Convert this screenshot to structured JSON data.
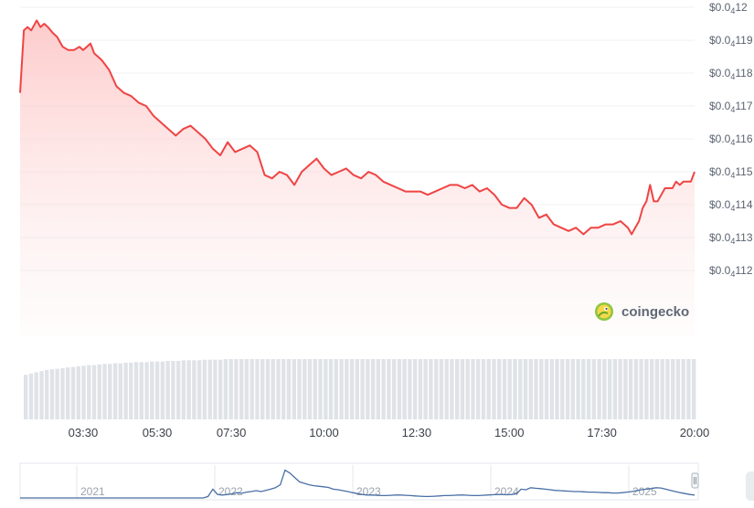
{
  "brand": {
    "name": "coingecko",
    "icon": "gecko-logo"
  },
  "colors": {
    "line": "#ef4444",
    "fillTop": "#fdc9c9",
    "grid": "#edf0f3",
    "volume": "#dfe3e8",
    "navigator": "#4a6fa5"
  },
  "chart_data": {
    "type": "area",
    "ylim": [
      0.0411,
      0.0412
    ],
    "y_tick_values": [
      0.0412,
      0.04119,
      0.04118,
      0.04117,
      0.04116,
      0.04115,
      0.04114,
      0.04113,
      0.04112
    ],
    "y_tick_labels": [
      {
        "main": "$0.0",
        "sub": "4",
        "tail": "12"
      },
      {
        "main": "$0.0",
        "sub": "4",
        "tail": "119"
      },
      {
        "main": "$0.0",
        "sub": "4",
        "tail": "118"
      },
      {
        "main": "$0.0",
        "sub": "4",
        "tail": "117"
      },
      {
        "main": "$0.0",
        "sub": "4",
        "tail": "116"
      },
      {
        "main": "$0.0",
        "sub": "4",
        "tail": "115"
      },
      {
        "main": "$0.0",
        "sub": "4",
        "tail": "114"
      },
      {
        "main": "$0.0",
        "sub": "4",
        "tail": "113"
      },
      {
        "main": "$0.0",
        "sub": "4",
        "tail": "112"
      }
    ],
    "x_range_hours": [
      1.8,
      20.0
    ],
    "x_ticks": [
      {
        "label": "03:30",
        "hour": 3.5
      },
      {
        "label": "05:30",
        "hour": 5.5
      },
      {
        "label": "07:30",
        "hour": 7.5
      },
      {
        "label": "10:00",
        "hour": 10.0
      },
      {
        "label": "12:30",
        "hour": 12.5
      },
      {
        "label": "15:00",
        "hour": 15.0
      },
      {
        "label": "17:30",
        "hour": 17.5
      },
      {
        "label": "20:00",
        "hour": 20.0
      }
    ],
    "series": [
      {
        "x": [
          1.8,
          1.9,
          2.0,
          2.1,
          2.25,
          2.35,
          2.45,
          2.55,
          2.7,
          2.8,
          2.95,
          3.1,
          3.25,
          3.4,
          3.5,
          3.6,
          3.7,
          3.8,
          4.0,
          4.2,
          4.4,
          4.6,
          4.8,
          5.0,
          5.2,
          5.4,
          5.6,
          5.8,
          6.0,
          6.2,
          6.4,
          6.6,
          6.8,
          7.0,
          7.2,
          7.4,
          7.6,
          7.8,
          8.0,
          8.2,
          8.4,
          8.6,
          8.8,
          9.0,
          9.2,
          9.4,
          9.6,
          9.8,
          10.0,
          10.2,
          10.4,
          10.6,
          10.8,
          11.0,
          11.2,
          11.4,
          11.6,
          11.8,
          12.0,
          12.2,
          12.4,
          12.6,
          12.8,
          13.0,
          13.2,
          13.4,
          13.6,
          13.8,
          14.0,
          14.2,
          14.4,
          14.6,
          14.8,
          15.0,
          15.2,
          15.4,
          15.6,
          15.8,
          16.0,
          16.2,
          16.4,
          16.6,
          16.8,
          17.0,
          17.2,
          17.4,
          17.6,
          17.8,
          18.0,
          18.1,
          18.2,
          18.3,
          18.4,
          18.5,
          18.6,
          18.7,
          18.8,
          18.9,
          19.0,
          19.1,
          19.2,
          19.3,
          19.4,
          19.5,
          19.6,
          19.7,
          19.8,
          19.9,
          20.0
        ],
        "y": [
          0.041174,
          0.041193,
          0.041194,
          0.041193,
          0.041196,
          0.041194,
          0.041195,
          0.041194,
          0.041192,
          0.041191,
          0.041188,
          0.041187,
          0.041187,
          0.041188,
          0.041187,
          0.041188,
          0.041189,
          0.041186,
          0.041184,
          0.041181,
          0.041176,
          0.041174,
          0.041173,
          0.041171,
          0.04117,
          0.041167,
          0.041165,
          0.041163,
          0.041161,
          0.041163,
          0.041164,
          0.041162,
          0.04116,
          0.041157,
          0.041155,
          0.041159,
          0.041156,
          0.041157,
          0.041158,
          0.041156,
          0.041149,
          0.041148,
          0.04115,
          0.041149,
          0.041146,
          0.04115,
          0.041152,
          0.041154,
          0.041151,
          0.041149,
          0.04115,
          0.041151,
          0.041149,
          0.041148,
          0.04115,
          0.041149,
          0.041147,
          0.041146,
          0.041145,
          0.041144,
          0.041144,
          0.041144,
          0.041143,
          0.041144,
          0.041145,
          0.041146,
          0.041146,
          0.041145,
          0.041146,
          0.041144,
          0.041145,
          0.041143,
          0.04114,
          0.041139,
          0.041139,
          0.041142,
          0.04114,
          0.041136,
          0.041137,
          0.041134,
          0.041133,
          0.041132,
          0.041133,
          0.041131,
          0.041133,
          0.041133,
          0.041134,
          0.041134,
          0.041135,
          0.041134,
          0.041133,
          0.041131,
          0.041133,
          0.041135,
          0.041139,
          0.041141,
          0.041146,
          0.041141,
          0.041141,
          0.041143,
          0.041145,
          0.041145,
          0.041145,
          0.041147,
          0.041146,
          0.041147,
          0.041147,
          0.041147,
          0.04115
        ]
      }
    ],
    "volume": {
      "bar_count": 128,
      "relative_values": [
        0.74,
        0.76,
        0.78,
        0.8,
        0.82,
        0.83,
        0.84,
        0.85,
        0.86,
        0.87,
        0.88,
        0.89,
        0.9,
        0.9,
        0.91,
        0.92,
        0.92,
        0.93,
        0.93,
        0.94,
        0.94,
        0.95,
        0.95,
        0.95,
        0.96,
        0.96,
        0.96,
        0.97,
        0.97,
        0.97,
        0.98,
        0.98,
        0.98,
        0.98,
        0.99,
        0.99,
        0.99,
        0.99,
        1.0,
        1.0,
        1.0,
        1.0,
        1.0,
        1.0,
        1.0,
        1.0,
        1.0,
        1.0,
        1.0,
        1.0,
        1.0,
        1.0,
        1.0,
        1.0,
        1.0,
        1.0,
        1.0,
        1.0,
        1.0,
        1.0,
        1.0,
        1.0,
        1.0,
        1.0,
        1.0,
        1.0,
        1.0,
        1.0,
        1.0,
        1.0,
        1.0,
        1.0,
        1.0,
        1.0,
        1.0,
        1.0,
        1.0,
        1.0,
        1.0,
        1.0,
        1.0,
        1.0,
        1.0,
        1.0,
        1.0,
        1.0,
        1.0,
        1.0,
        1.0,
        1.0,
        1.0,
        1.0,
        1.0,
        1.0,
        1.0,
        1.0,
        1.0,
        1.0,
        1.0,
        1.0,
        1.0,
        1.0,
        1.0,
        1.0,
        1.0,
        1.0,
        1.0,
        1.0,
        1.0,
        1.0,
        1.0,
        1.0,
        1.0,
        1.0,
        1.0,
        1.0,
        1.0,
        1.0,
        1.0,
        1.0,
        1.0,
        1.0,
        1.0,
        1.0,
        1.0,
        1.0,
        1.0,
        1.0
      ]
    },
    "navigator": {
      "year_labels": [
        "2021",
        "2022",
        "2023",
        "2024",
        "2025"
      ],
      "relative_series": [
        0.0,
        0.0,
        0.0,
        0.0,
        0.0,
        0.0,
        0.0,
        0.0,
        0.0,
        0.0,
        0.0,
        0.0,
        0.0,
        0.0,
        0.0,
        0.0,
        0.0,
        0.0,
        0.0,
        0.0,
        0.0,
        0.0,
        0.0,
        0.0,
        0.0,
        0.0,
        0.0,
        0.0,
        0.0,
        0.0,
        0.0,
        0.0,
        0.0,
        0.0,
        0.0,
        0.0,
        0.0,
        0.0,
        0.0,
        0.05,
        0.3,
        0.12,
        0.1,
        0.12,
        0.14,
        0.18,
        0.16,
        0.2,
        0.22,
        0.25,
        0.22,
        0.26,
        0.3,
        0.35,
        0.45,
        0.95,
        0.85,
        0.7,
        0.55,
        0.5,
        0.45,
        0.42,
        0.4,
        0.38,
        0.36,
        0.3,
        0.28,
        0.25,
        0.22,
        0.18,
        0.15,
        0.12,
        0.1,
        0.1,
        0.09,
        0.08,
        0.08,
        0.09,
        0.1,
        0.1,
        0.09,
        0.08,
        0.07,
        0.06,
        0.05,
        0.05,
        0.06,
        0.07,
        0.08,
        0.08,
        0.09,
        0.1,
        0.1,
        0.09,
        0.08,
        0.08,
        0.09,
        0.1,
        0.11,
        0.12,
        0.12,
        0.11,
        0.12,
        0.14,
        0.3,
        0.28,
        0.35,
        0.33,
        0.32,
        0.3,
        0.28,
        0.26,
        0.25,
        0.24,
        0.23,
        0.22,
        0.22,
        0.21,
        0.2,
        0.2,
        0.19,
        0.18,
        0.18,
        0.17,
        0.17,
        0.18,
        0.2,
        0.22,
        0.25,
        0.28,
        0.3,
        0.32,
        0.35,
        0.34,
        0.3,
        0.26,
        0.22,
        0.18,
        0.15,
        0.12,
        0.1
      ]
    }
  }
}
